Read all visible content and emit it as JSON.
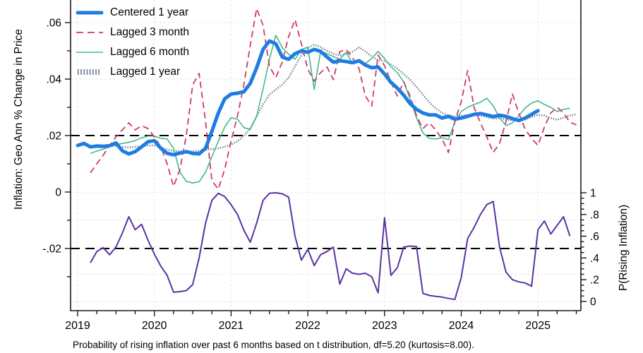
{
  "caption": "Probability of rising inflation over past 6 months based on t distribution, df=5.20 (kurtosis=8.00).",
  "colors": {
    "centered_1yr": "#1e7ce2",
    "lagged_3mo": "#cf3a6c",
    "lagged_6mo": "#45b98a",
    "lagged_1yr": "#6b7a8f",
    "probability": "#5a34a3",
    "reference_line": "#000000",
    "grid": "#e6e6e6",
    "axis": "#1a1a1a"
  },
  "chart_data": {
    "type": "line",
    "title": "",
    "caption": "Probability of rising inflation over past 6 months based on t distribution, df=5.20 (kurtosis=8.00).",
    "x_axis": {
      "range": [
        2018.908,
        2025.56
      ],
      "ticks": [
        2019,
        2020,
        2021,
        2022,
        2023,
        2024,
        2025
      ],
      "tick_labels": [
        "2019",
        "2020",
        "2021",
        "2022",
        "2023",
        "2024",
        "2025"
      ],
      "minor_step": 0.25,
      "grid": true
    },
    "y_left": {
      "label": "Inflation: Geo Ann % Change in Price",
      "range": [
        -0.042,
        0.068
      ],
      "ticks": [
        -0.02,
        0,
        0.02,
        0.04,
        0.06
      ],
      "tick_labels": [
        "-.02",
        "0",
        ".02",
        ".04",
        ".06"
      ],
      "minor_ticks": [
        -0.03,
        -0.01,
        0.01,
        0.03,
        0.05
      ],
      "gridlines": [
        0.04,
        0.06
      ],
      "ref_lines": [
        0.02,
        -0.02
      ]
    },
    "y_right": {
      "label": "P(Rising Inflation)",
      "range": [
        0,
        1
      ],
      "ticks": [
        0,
        0.2,
        0.4,
        0.6,
        0.8,
        1
      ],
      "tick_labels": [
        "0",
        ".2",
        ".4",
        ".6",
        ".8",
        "1"
      ],
      "minor_step": 0.05,
      "gridlines": [
        0,
        0.25,
        0.5,
        0.75,
        1
      ]
    },
    "legend_position": "top-left-inside",
    "series": [
      {
        "name": "Centered 1 year",
        "axis": "left",
        "style": "solid-thick",
        "color": "#1e7ce2",
        "width": 5,
        "t0": 2019.0,
        "dt": 0.083333,
        "values": [
          0.0165,
          0.0172,
          0.016,
          0.0163,
          0.0162,
          0.0164,
          0.0174,
          0.0146,
          0.0135,
          0.0143,
          0.016,
          0.0178,
          0.0182,
          0.0155,
          0.0137,
          0.0132,
          0.0138,
          0.0143,
          0.0137,
          0.0135,
          0.0155,
          0.0215,
          0.028,
          0.033,
          0.0347,
          0.035,
          0.0355,
          0.0385,
          0.044,
          0.0505,
          0.0535,
          0.0525,
          0.0478,
          0.047,
          0.049,
          0.05,
          0.0495,
          0.0505,
          0.0498,
          0.0478,
          0.046,
          0.0465,
          0.0462,
          0.0458,
          0.0465,
          0.045,
          0.044,
          0.0443,
          0.0418,
          0.0388,
          0.0368,
          0.0343,
          0.0313,
          0.0293,
          0.028,
          0.0273,
          0.0273,
          0.0262,
          0.0268,
          0.0258,
          0.0262,
          0.0268,
          0.0275,
          0.0278,
          0.0273,
          0.0267,
          0.0272,
          0.0268,
          0.026,
          0.0253,
          0.0262,
          0.0275,
          0.0288
        ]
      },
      {
        "name": "Lagged 3 month",
        "axis": "left",
        "style": "dashed",
        "color": "#cf3a6c",
        "width": 1.8,
        "t0": 2019.166667,
        "dt": 0.083333,
        "values": [
          0.0068,
          0.01,
          0.013,
          0.0165,
          0.0195,
          0.022,
          0.0245,
          0.022,
          0.0235,
          0.0225,
          0.0195,
          0.016,
          0.01,
          0.002,
          0.008,
          0.02,
          0.038,
          0.042,
          0.025,
          0.004,
          0.001,
          0.008,
          0.018,
          0.027,
          0.038,
          0.052,
          0.065,
          0.059,
          0.0445,
          0.0405,
          0.046,
          0.055,
          0.061,
          0.0525,
          0.0435,
          0.0393,
          0.0423,
          0.0443,
          0.0398,
          0.0497,
          0.0505,
          0.0475,
          0.0438,
          0.034,
          0.0305,
          0.0485,
          0.0447,
          0.039,
          0.034,
          0.039,
          0.034,
          0.027,
          0.0225,
          0.0245,
          0.022,
          0.0188,
          0.014,
          0.025,
          0.032,
          0.043,
          0.03,
          0.0245,
          0.0195,
          0.014,
          0.0172,
          0.025,
          0.0347,
          0.028,
          0.0222,
          0.019,
          0.0165,
          0.023,
          0.028,
          0.03,
          0.028,
          0.0247,
          0.0238
        ]
      },
      {
        "name": "Lagged 6 month",
        "axis": "left",
        "style": "solid-thin",
        "color": "#45b98a",
        "width": 1.6,
        "t0": 2019.166667,
        "dt": 0.083333,
        "values": [
          0.0137,
          0.0145,
          0.0152,
          0.016,
          0.0168,
          0.0172,
          0.0176,
          0.0182,
          0.0192,
          0.0198,
          0.0198,
          0.019,
          0.0188,
          0.0155,
          0.007,
          0.0038,
          0.0032,
          0.0036,
          0.007,
          0.0125,
          0.018,
          0.023,
          0.0263,
          0.0258,
          0.0228,
          0.0222,
          0.0268,
          0.0365,
          0.047,
          0.0555,
          0.0512,
          0.0488,
          0.047,
          0.0505,
          0.0513,
          0.0363,
          0.0498,
          0.049,
          0.048,
          0.047,
          0.0495,
          0.0455,
          0.0468,
          0.0455,
          0.0473,
          0.0498,
          0.0473,
          0.0443,
          0.0423,
          0.039,
          0.033,
          0.0263,
          0.021,
          0.019,
          0.0188,
          0.0192,
          0.0186,
          0.0248,
          0.0285,
          0.03,
          0.031,
          0.0318,
          0.0332,
          0.0305,
          0.0263,
          0.0235,
          0.0245,
          0.027,
          0.0298,
          0.0315,
          0.0323,
          0.031,
          0.03,
          0.0285,
          0.0293,
          0.0297
        ]
      },
      {
        "name": "Lagged 1 year",
        "axis": "left",
        "style": "dotted-hatch",
        "color": "#6b7a8f",
        "width": 2.5,
        "t0": 2019.166667,
        "dt": 0.083333,
        "values": [
          0.016,
          0.0158,
          0.016,
          0.0162,
          0.0163,
          0.016,
          0.0158,
          0.016,
          0.0162,
          0.0165,
          0.0165,
          0.0158,
          0.015,
          0.0146,
          0.0144,
          0.0143,
          0.0144,
          0.0146,
          0.0149,
          0.0152,
          0.0155,
          0.016,
          0.0168,
          0.018,
          0.0198,
          0.0225,
          0.0268,
          0.031,
          0.0345,
          0.0363,
          0.038,
          0.0405,
          0.0445,
          0.0485,
          0.051,
          0.0522,
          0.0513,
          0.05,
          0.049,
          0.0482,
          0.049,
          0.0497,
          0.0512,
          0.0498,
          0.048,
          0.0467,
          0.0463,
          0.0452,
          0.0437,
          0.0418,
          0.0398,
          0.0372,
          0.0345,
          0.0318,
          0.0296,
          0.028,
          0.0271,
          0.0268,
          0.027,
          0.0273,
          0.0275,
          0.0271,
          0.0265,
          0.026,
          0.0262,
          0.0257,
          0.0254,
          0.0252,
          0.0258,
          0.0266,
          0.0273,
          0.0271,
          0.0262,
          0.0256,
          0.0263,
          0.0271,
          0.0275
        ]
      },
      {
        "name": "P(Rising Inflation)",
        "axis": "right",
        "style": "solid-thin",
        "color": "#5a34a3",
        "width": 2,
        "t0": 2019.166667,
        "dt": 0.083333,
        "values": [
          0.355,
          0.46,
          0.495,
          0.43,
          0.5,
          0.63,
          0.78,
          0.66,
          0.71,
          0.565,
          0.435,
          0.325,
          0.24,
          0.085,
          0.09,
          0.1,
          0.155,
          0.4,
          0.72,
          0.93,
          0.995,
          0.965,
          0.89,
          0.8,
          0.655,
          0.545,
          0.72,
          0.93,
          0.995,
          1.0,
          0.99,
          0.96,
          0.6,
          0.38,
          0.48,
          0.33,
          0.43,
          0.46,
          0.5,
          0.16,
          0.3,
          0.26,
          0.25,
          0.26,
          0.227,
          0.08,
          0.77,
          0.24,
          0.31,
          0.5,
          0.51,
          0.505,
          0.075,
          0.055,
          0.047,
          0.04,
          0.028,
          0.018,
          0.22,
          0.58,
          0.68,
          0.8,
          0.89,
          0.92,
          0.5,
          0.27,
          0.2,
          0.18,
          0.17,
          0.14,
          0.66,
          0.74,
          0.62,
          0.7,
          0.78,
          0.6
        ]
      }
    ]
  }
}
